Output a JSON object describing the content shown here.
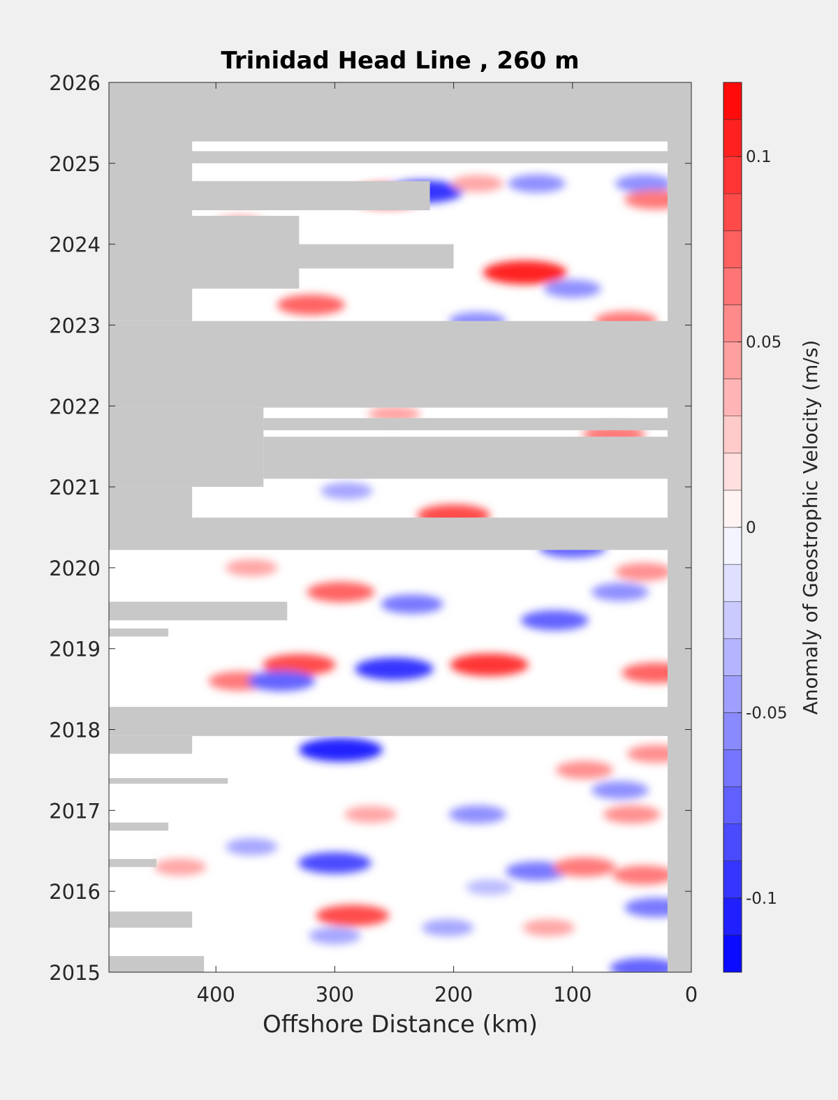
{
  "chart_data": {
    "type": "heatmap",
    "title": "Trinidad Head Line , 260 m",
    "xlabel": "Offshore Distance (km)",
    "ylabel": "",
    "x_reversed": true,
    "xlim": [
      490,
      0
    ],
    "ylim": [
      2015,
      2026
    ],
    "x_ticks": [
      400,
      300,
      200,
      100,
      0
    ],
    "y_ticks": [
      2015,
      2016,
      2017,
      2018,
      2019,
      2020,
      2021,
      2022,
      2023,
      2024,
      2025,
      2026
    ],
    "x_tick_labels": [
      "400",
      "300",
      "200",
      "100",
      "0"
    ],
    "y_tick_labels": [
      "2015",
      "2016",
      "2017",
      "2018",
      "2019",
      "2020",
      "2021",
      "2022",
      "2023",
      "2024",
      "2025",
      "2026"
    ],
    "colorbar": {
      "label": "Anomaly of Geostrophic Velocity (m/s)",
      "range": [
        -0.12,
        0.12
      ],
      "step": 0.01,
      "ticks": [
        0.1,
        0.05,
        0,
        -0.05,
        -0.1
      ],
      "tick_labels": [
        "0.1",
        "0.05",
        "0",
        "-0.05",
        "-0.1"
      ],
      "low_color": "#0000ff",
      "mid_color": "#ffffff",
      "high_color": "#ff0000"
    },
    "nodata_color": "#c8c8c8",
    "grid": false,
    "nodata_regions": [
      {
        "x_from": 490,
        "x_to": 0,
        "y_from": 2025.27,
        "y_to": 2026
      },
      {
        "x_from": 20,
        "x_to": 0,
        "y_from": 2015,
        "y_to": 2026
      },
      {
        "x_from": 490,
        "x_to": 420,
        "y_from": 2023.05,
        "y_to": 2025.27
      },
      {
        "x_from": 490,
        "x_to": 20,
        "y_from": 2025.0,
        "y_to": 2025.15
      },
      {
        "x_from": 490,
        "x_to": 220,
        "y_from": 2024.42,
        "y_to": 2024.78
      },
      {
        "x_from": 490,
        "x_to": 330,
        "y_from": 2023.45,
        "y_to": 2024.35
      },
      {
        "x_from": 490,
        "x_to": 200,
        "y_from": 2023.7,
        "y_to": 2024.0
      },
      {
        "x_from": 490,
        "x_to": 0,
        "y_from": 2023.0,
        "y_to": 2023.05
      },
      {
        "x_from": 490,
        "x_to": 0,
        "y_from": 2021.98,
        "y_to": 2023.0
      },
      {
        "x_from": 490,
        "x_to": 360,
        "y_from": 2021.0,
        "y_to": 2021.98
      },
      {
        "x_from": 360,
        "x_to": 20,
        "y_from": 2021.7,
        "y_to": 2021.85
      },
      {
        "x_from": 360,
        "x_to": 20,
        "y_from": 2021.1,
        "y_to": 2021.62
      },
      {
        "x_from": 490,
        "x_to": 420,
        "y_from": 2020.6,
        "y_to": 2021.0
      },
      {
        "x_from": 490,
        "x_to": 20,
        "y_from": 2020.22,
        "y_to": 2020.62
      },
      {
        "x_from": 490,
        "x_to": 340,
        "y_from": 2019.35,
        "y_to": 2019.58
      },
      {
        "x_from": 490,
        "x_to": 440,
        "y_from": 2019.15,
        "y_to": 2019.25
      },
      {
        "x_from": 490,
        "x_to": 20,
        "y_from": 2017.92,
        "y_to": 2018.28
      },
      {
        "x_from": 490,
        "x_to": 420,
        "y_from": 2017.7,
        "y_to": 2017.92
      },
      {
        "x_from": 490,
        "x_to": 390,
        "y_from": 2017.33,
        "y_to": 2017.4
      },
      {
        "x_from": 490,
        "x_to": 440,
        "y_from": 2016.75,
        "y_to": 2016.85
      },
      {
        "x_from": 490,
        "x_to": 450,
        "y_from": 2016.3,
        "y_to": 2016.4
      },
      {
        "x_from": 490,
        "x_to": 420,
        "y_from": 2015.55,
        "y_to": 2015.75
      },
      {
        "x_from": 490,
        "x_to": 410,
        "y_from": 2015.0,
        "y_to": 2015.2
      }
    ],
    "features": [
      {
        "x": 255,
        "y": 2024.6,
        "value": 0.1
      },
      {
        "x": 225,
        "y": 2024.65,
        "value": -0.09
      },
      {
        "x": 180,
        "y": 2024.75,
        "value": 0.04
      },
      {
        "x": 130,
        "y": 2024.75,
        "value": -0.05
      },
      {
        "x": 40,
        "y": 2024.75,
        "value": -0.05
      },
      {
        "x": 30,
        "y": 2024.55,
        "value": 0.06
      },
      {
        "x": 380,
        "y": 2024.25,
        "value": 0.04
      },
      {
        "x": 140,
        "y": 2023.65,
        "value": 0.1
      },
      {
        "x": 100,
        "y": 2023.45,
        "value": -0.05
      },
      {
        "x": 320,
        "y": 2023.25,
        "value": 0.07
      },
      {
        "x": 180,
        "y": 2023.05,
        "value": -0.05
      },
      {
        "x": 55,
        "y": 2023.05,
        "value": 0.06
      },
      {
        "x": 250,
        "y": 2021.9,
        "value": 0.04
      },
      {
        "x": 65,
        "y": 2021.65,
        "value": 0.06
      },
      {
        "x": 290,
        "y": 2020.95,
        "value": -0.04
      },
      {
        "x": 200,
        "y": 2020.65,
        "value": 0.08
      },
      {
        "x": 100,
        "y": 2020.25,
        "value": -0.07
      },
      {
        "x": 370,
        "y": 2020.0,
        "value": 0.04
      },
      {
        "x": 295,
        "y": 2019.7,
        "value": 0.07
      },
      {
        "x": 235,
        "y": 2019.55,
        "value": -0.06
      },
      {
        "x": 60,
        "y": 2019.7,
        "value": -0.05
      },
      {
        "x": 115,
        "y": 2019.35,
        "value": -0.07
      },
      {
        "x": 40,
        "y": 2019.95,
        "value": 0.05
      },
      {
        "x": 330,
        "y": 2018.8,
        "value": 0.08
      },
      {
        "x": 250,
        "y": 2018.75,
        "value": -0.09
      },
      {
        "x": 170,
        "y": 2018.8,
        "value": 0.09
      },
      {
        "x": 380,
        "y": 2018.6,
        "value": 0.06
      },
      {
        "x": 345,
        "y": 2018.6,
        "value": -0.07
      },
      {
        "x": 30,
        "y": 2018.7,
        "value": 0.07
      },
      {
        "x": 295,
        "y": 2017.75,
        "value": -0.1
      },
      {
        "x": 30,
        "y": 2017.7,
        "value": 0.05
      },
      {
        "x": 90,
        "y": 2017.5,
        "value": 0.05
      },
      {
        "x": 60,
        "y": 2017.25,
        "value": -0.05
      },
      {
        "x": 180,
        "y": 2016.95,
        "value": -0.05
      },
      {
        "x": 270,
        "y": 2016.95,
        "value": 0.04
      },
      {
        "x": 50,
        "y": 2016.95,
        "value": 0.05
      },
      {
        "x": 370,
        "y": 2016.55,
        "value": -0.04
      },
      {
        "x": 300,
        "y": 2016.35,
        "value": -0.08
      },
      {
        "x": 430,
        "y": 2016.3,
        "value": 0.04
      },
      {
        "x": 130,
        "y": 2016.25,
        "value": -0.06
      },
      {
        "x": 90,
        "y": 2016.3,
        "value": 0.06
      },
      {
        "x": 40,
        "y": 2016.2,
        "value": 0.06
      },
      {
        "x": 285,
        "y": 2015.7,
        "value": 0.08
      },
      {
        "x": 205,
        "y": 2015.55,
        "value": -0.04
      },
      {
        "x": 120,
        "y": 2015.55,
        "value": 0.04
      },
      {
        "x": 30,
        "y": 2015.8,
        "value": -0.06
      },
      {
        "x": 40,
        "y": 2015.05,
        "value": -0.07
      },
      {
        "x": 300,
        "y": 2015.45,
        "value": -0.04
      },
      {
        "x": 170,
        "y": 2016.05,
        "value": -0.03
      }
    ]
  }
}
